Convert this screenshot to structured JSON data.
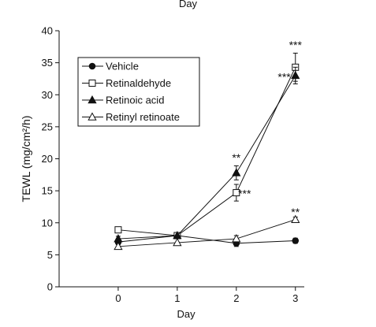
{
  "top_caption": "Day",
  "chart_data": {
    "type": "line",
    "xlabel": "Day",
    "ylabel": "TEWL (mg/cm²/h)",
    "x": [
      0,
      1,
      2,
      3
    ],
    "xlim": [
      -1,
      3.15
    ],
    "ylim": [
      0,
      40
    ],
    "x_ticks": [
      "0",
      "1",
      "2",
      "3"
    ],
    "y_ticks": [
      "0",
      "5",
      "10",
      "15",
      "20",
      "25",
      "30",
      "35",
      "40"
    ],
    "grid": false,
    "legend_position": "top-left",
    "series": [
      {
        "name": "Vehicle",
        "marker": "filled-circle",
        "values": [
          7.0,
          8.0,
          6.8,
          7.2
        ],
        "errors": [
          0.4,
          0.3,
          0.5,
          0.4
        ]
      },
      {
        "name": "Retinaldehyde",
        "marker": "open-square",
        "values": [
          8.9,
          8.0,
          14.7,
          34.3
        ],
        "errors": [
          0.3,
          0.3,
          1.3,
          2.2
        ]
      },
      {
        "name": "Retinoic acid",
        "marker": "filled-triangle",
        "values": [
          7.5,
          8.0,
          17.8,
          33.0
        ],
        "errors": [
          0.4,
          0.3,
          1.1,
          1.3
        ]
      },
      {
        "name": "Retinyl retinoate",
        "marker": "open-triangle",
        "values": [
          6.3,
          6.9,
          7.5,
          10.5
        ],
        "errors": [
          0.3,
          0.2,
          0.5,
          0.4
        ]
      }
    ],
    "annotations": [
      {
        "text": "**",
        "x": 2,
        "y": 20.2,
        "anchor": "middle"
      },
      {
        "text": "***",
        "x": 2.03,
        "y": 14.6,
        "anchor": "start"
      },
      {
        "text": "***",
        "x": 3,
        "y": 37.8,
        "anchor": "middle"
      },
      {
        "text": "***",
        "x": 2.92,
        "y": 32.8,
        "anchor": "end"
      },
      {
        "text": "**",
        "x": 3,
        "y": 11.7,
        "anchor": "middle"
      }
    ]
  }
}
